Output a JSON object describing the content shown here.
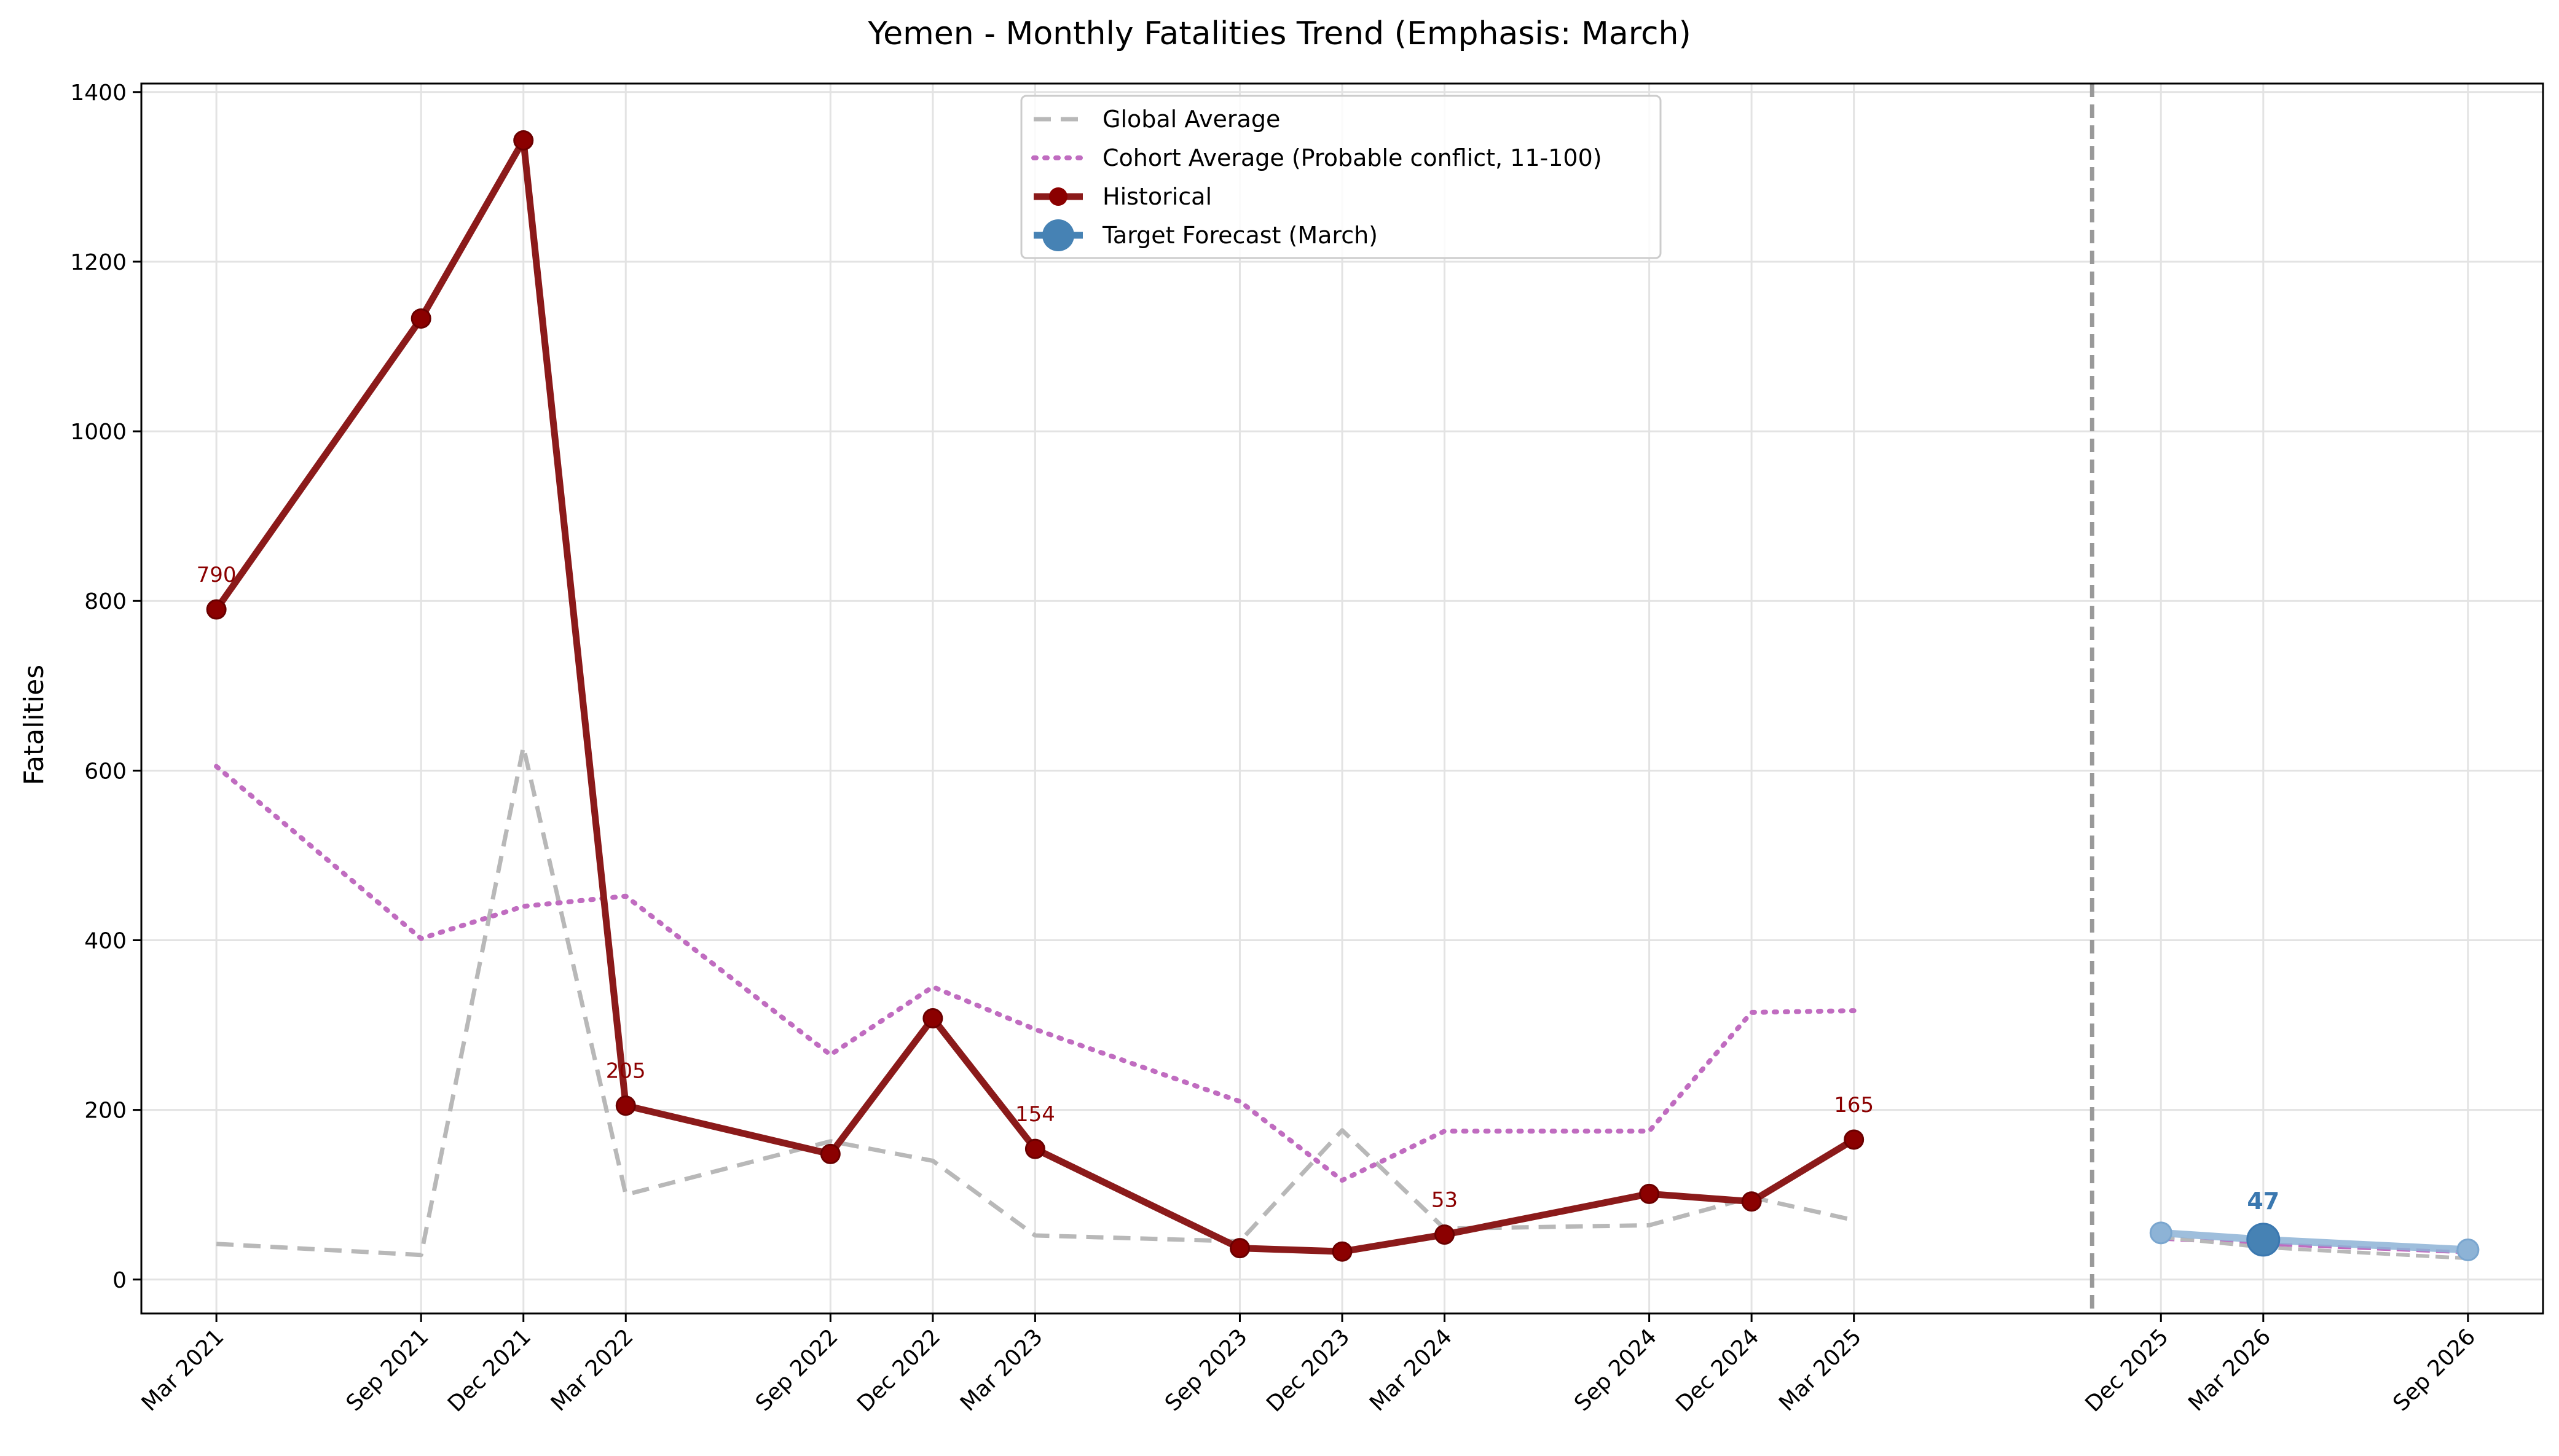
{
  "chart_data": {
    "type": "line",
    "title": "Yemen - Monthly Fatalities Trend (Emphasis: March)",
    "xlabel": "",
    "ylabel": "Fatalities",
    "ylim": [
      -40,
      1410
    ],
    "yticks": [
      0,
      200,
      400,
      600,
      800,
      1000,
      1200,
      1400
    ],
    "grid": true,
    "legend_position": "top-center",
    "x_categories": [
      "Mar 2021",
      "Sep 2021",
      "Dec 2021",
      "Mar 2022",
      "Sep 2022",
      "Dec 2022",
      "Mar 2023",
      "Sep 2023",
      "Dec 2023",
      "Mar 2024",
      "Sep 2024",
      "Dec 2024",
      "Mar 2025",
      "Dec 2025",
      "Mar 2026",
      "Sep 2026"
    ],
    "forecast_divider_label": "",
    "series": [
      {
        "name": "Global Average",
        "style": "dashed",
        "color": "#b8b8b8",
        "x": [
          "Mar 2021",
          "Sep 2021",
          "Dec 2021",
          "Mar 2022",
          "Sep 2022",
          "Dec 2022",
          "Mar 2023",
          "Sep 2023",
          "Dec 2023",
          "Mar 2024",
          "Sep 2024",
          "Dec 2024",
          "Mar 2025"
        ],
        "values": [
          42,
          29,
          628,
          100,
          163,
          140,
          52,
          45,
          176,
          60,
          64,
          97,
          70
        ]
      },
      {
        "name": "Cohort Average (Probable conflict, 11-100)",
        "style": "dotted",
        "color": "#c06cc0",
        "x": [
          "Mar 2021",
          "Sep 2021",
          "Dec 2021",
          "Mar 2022",
          "Sep 2022",
          "Dec 2022",
          "Mar 2023",
          "Sep 2023",
          "Dec 2023",
          "Mar 2024",
          "Sep 2024",
          "Dec 2024",
          "Mar 2025"
        ],
        "values": [
          605,
          402,
          440,
          452,
          265,
          345,
          295,
          210,
          117,
          175,
          175,
          315,
          317
        ]
      },
      {
        "name": "Historical",
        "style": "solid",
        "color": "#8b1a1a",
        "x": [
          "Mar 2021",
          "Sep 2021",
          "Dec 2021",
          "Mar 2022",
          "Sep 2022",
          "Dec 2022",
          "Mar 2023",
          "Sep 2023",
          "Dec 2023",
          "Mar 2024",
          "Sep 2024",
          "Dec 2024",
          "Mar 2025"
        ],
        "values": [
          790,
          1133,
          1343,
          205,
          148,
          308,
          154,
          37,
          33,
          53,
          101,
          92,
          165
        ],
        "labels": [
          {
            "x": "Mar 2021",
            "value": 790,
            "text": "790"
          },
          {
            "x": "Mar 2022",
            "value": 205,
            "text": "205"
          },
          {
            "x": "Mar 2023",
            "value": 154,
            "text": "154"
          },
          {
            "x": "Mar 2024",
            "value": 53,
            "text": "53"
          },
          {
            "x": "Mar 2025",
            "value": 165,
            "text": "165"
          }
        ]
      },
      {
        "name": "Target Forecast (March)",
        "style": "solid",
        "color": "#4682b4",
        "x": [
          "Dec 2025",
          "Mar 2026",
          "Sep 2026"
        ],
        "values": [
          55,
          47,
          35
        ],
        "emphasis": {
          "x": "Mar 2026",
          "value": 47,
          "text": "47"
        }
      }
    ],
    "forecast_reference_lines": [
      {
        "style": "dashed",
        "color": "#c06cc0",
        "x": [
          "Dec 2025",
          "Mar 2026",
          "Sep 2026"
        ],
        "values": [
          48,
          42,
          32
        ]
      },
      {
        "style": "dashed",
        "color": "#b8b8b8",
        "x": [
          "Dec 2025",
          "Mar 2026",
          "Sep 2026"
        ],
        "values": [
          50,
          38,
          25
        ]
      }
    ]
  }
}
